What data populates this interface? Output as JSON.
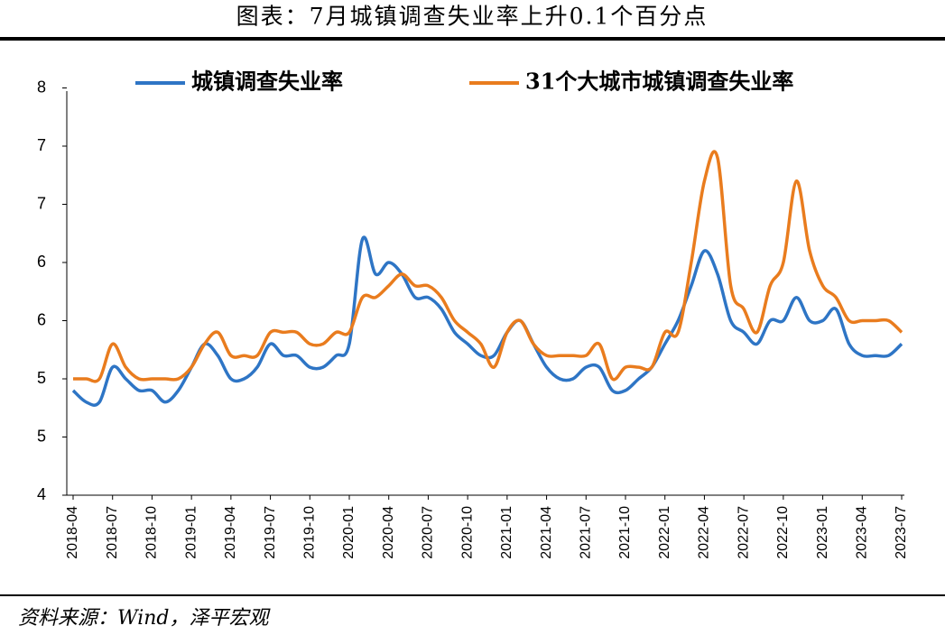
{
  "chart_data": {
    "type": "line",
    "title": "图表：7月城镇调查失业率上升0.1个百分点",
    "source": "资料来源：Wind，泽平宏观",
    "categories": [
      "2018-04",
      null,
      null,
      "2018-07",
      null,
      null,
      "2018-10",
      null,
      null,
      "2019-01",
      null,
      null,
      "2019-04",
      null,
      null,
      "2019-07",
      null,
      null,
      "2019-10",
      null,
      null,
      "2020-01",
      null,
      null,
      "2020-04",
      null,
      null,
      "2020-07",
      null,
      null,
      "2020-10",
      null,
      null,
      "2021-01",
      null,
      null,
      "2021-04",
      null,
      null,
      "2021-07",
      null,
      null,
      "2021-10",
      null,
      null,
      "2022-01",
      null,
      null,
      "2022-04",
      null,
      null,
      "2022-07",
      null,
      null,
      "2022-10",
      null,
      null,
      "2023-01",
      null,
      null,
      "2023-04",
      null,
      null,
      "2023-07"
    ],
    "series": [
      {
        "name": "城镇调查失业率",
        "color": "#2e75c5",
        "values": [
          4.9,
          4.8,
          4.8,
          5.1,
          5.0,
          4.9,
          4.9,
          4.8,
          4.9,
          5.1,
          5.3,
          5.2,
          5.0,
          5.0,
          5.1,
          5.3,
          5.2,
          5.2,
          5.1,
          5.1,
          5.2,
          5.3,
          6.2,
          5.9,
          6.0,
          5.9,
          5.7,
          5.7,
          5.6,
          5.4,
          5.3,
          5.2,
          5.2,
          5.4,
          5.5,
          5.3,
          5.1,
          5.0,
          5.0,
          5.1,
          5.1,
          4.9,
          4.9,
          5.0,
          5.1,
          5.3,
          5.5,
          5.8,
          6.1,
          5.9,
          5.5,
          5.4,
          5.3,
          5.5,
          5.5,
          5.7,
          5.5,
          5.5,
          5.6,
          5.3,
          5.2,
          5.2,
          5.2,
          5.3
        ]
      },
      {
        "name": "31个大城市城镇调查失业率",
        "color": "#e97c1e",
        "values": [
          5.0,
          5.0,
          5.0,
          5.3,
          5.1,
          5.0,
          5.0,
          5.0,
          5.0,
          5.1,
          5.3,
          5.4,
          5.2,
          5.2,
          5.2,
          5.4,
          5.4,
          5.4,
          5.3,
          5.3,
          5.4,
          5.4,
          5.7,
          5.7,
          5.8,
          5.9,
          5.8,
          5.8,
          5.7,
          5.5,
          5.4,
          5.3,
          5.1,
          5.4,
          5.5,
          5.3,
          5.2,
          5.2,
          5.2,
          5.2,
          5.3,
          5.0,
          5.1,
          5.1,
          5.1,
          5.4,
          5.4,
          6.0,
          6.7,
          6.9,
          5.8,
          5.6,
          5.4,
          5.8,
          6.0,
          6.7,
          6.1,
          5.8,
          5.7,
          5.5,
          5.5,
          5.5,
          5.5,
          5.4
        ]
      }
    ],
    "ylim": [
      4,
      7.5
    ],
    "yticks": [
      4,
      {
        "value": 4.5,
        "label": "5"
      },
      5,
      {
        "value": 5.5,
        "label": "6"
      },
      6,
      {
        "value": 6.5,
        "label": "7"
      },
      7,
      {
        "value": 7.5,
        "label": "8"
      }
    ]
  }
}
